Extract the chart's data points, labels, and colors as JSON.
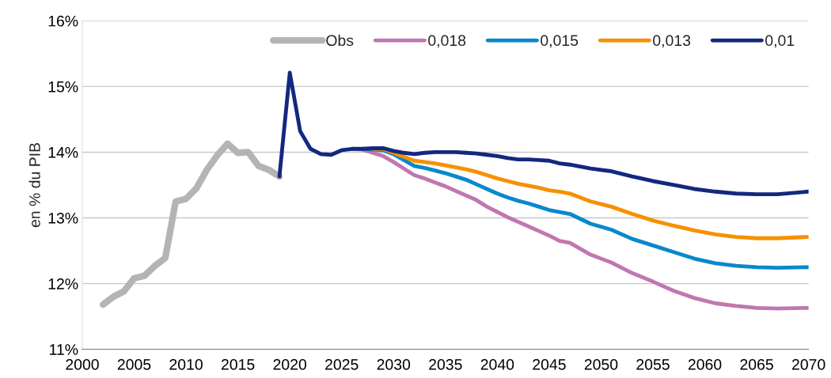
{
  "chart_data": {
    "type": "line",
    "ylabel": "en % du PIB",
    "xlim": [
      2000,
      2070
    ],
    "xticks": [
      2000,
      2005,
      2010,
      2015,
      2020,
      2025,
      2030,
      2035,
      2040,
      2045,
      2050,
      2055,
      2060,
      2065,
      2070
    ],
    "ylim": [
      11,
      16
    ],
    "yticks": [
      {
        "value": 11,
        "label": "11%"
      },
      {
        "value": 12,
        "label": "12%"
      },
      {
        "value": 13,
        "label": "13%"
      },
      {
        "value": 14,
        "label": "14%"
      },
      {
        "value": 15,
        "label": "15%"
      },
      {
        "value": 16,
        "label": "16%"
      }
    ],
    "grid": "y",
    "legend": "top",
    "marker": "none",
    "line_style": "solid",
    "series": [
      {
        "name": "Obs",
        "color": "#b4b4b4",
        "x": [
          2002,
          2003,
          2004,
          2005,
          2006,
          2007,
          2008,
          2009,
          2010,
          2011,
          2012,
          2013,
          2014,
          2015,
          2016,
          2017,
          2018,
          2019
        ],
        "values": [
          11.68,
          11.8,
          11.88,
          12.08,
          12.12,
          12.27,
          12.39,
          13.25,
          13.29,
          13.45,
          13.73,
          13.95,
          14.13,
          13.99,
          14.0,
          13.79,
          13.73,
          13.63
        ]
      },
      {
        "name": "0,018",
        "color": "#c077b0",
        "x": [
          2026,
          2027,
          2028,
          2029,
          2030,
          2031,
          2032,
          2033,
          2034,
          2035,
          2036,
          2037,
          2038,
          2039,
          2040,
          2041,
          2042,
          2043,
          2044,
          2045,
          2046,
          2047,
          2049,
          2051,
          2053,
          2055,
          2057,
          2059,
          2061,
          2063,
          2065,
          2067,
          2070
        ],
        "values": [
          14.05,
          14.04,
          13.99,
          13.94,
          13.85,
          13.75,
          13.65,
          13.6,
          13.54,
          13.48,
          13.41,
          13.34,
          13.27,
          13.17,
          13.09,
          13.01,
          12.94,
          12.87,
          12.8,
          12.73,
          12.65,
          12.62,
          12.44,
          12.32,
          12.16,
          12.03,
          11.89,
          11.78,
          11.7,
          11.66,
          11.63,
          11.62,
          11.63
        ]
      },
      {
        "name": "0,015",
        "color": "#0a88cc",
        "x": [
          2027,
          2028,
          2029,
          2030,
          2031,
          2032,
          2033,
          2034,
          2035,
          2036,
          2037,
          2038,
          2039,
          2040,
          2041,
          2042,
          2043,
          2044,
          2045,
          2046,
          2047,
          2049,
          2051,
          2053,
          2055,
          2057,
          2059,
          2061,
          2063,
          2065,
          2067,
          2070
        ],
        "values": [
          14.05,
          14.04,
          14.03,
          13.97,
          13.88,
          13.79,
          13.76,
          13.72,
          13.68,
          13.63,
          13.58,
          13.51,
          13.44,
          13.37,
          13.31,
          13.26,
          13.22,
          13.17,
          13.12,
          13.09,
          13.06,
          12.91,
          12.82,
          12.68,
          12.58,
          12.48,
          12.38,
          12.31,
          12.27,
          12.25,
          12.24,
          12.25
        ]
      },
      {
        "name": "0,013",
        "color": "#f59100",
        "x": [
          2028,
          2029,
          2030,
          2031,
          2032,
          2033,
          2034,
          2035,
          2036,
          2037,
          2038,
          2039,
          2040,
          2041,
          2042,
          2043,
          2044,
          2045,
          2046,
          2047,
          2049,
          2051,
          2053,
          2055,
          2057,
          2059,
          2061,
          2063,
          2065,
          2067,
          2070
        ],
        "values": [
          14.05,
          14.05,
          13.99,
          13.93,
          13.87,
          13.85,
          13.83,
          13.8,
          13.77,
          13.74,
          13.7,
          13.65,
          13.6,
          13.56,
          13.52,
          13.49,
          13.46,
          13.42,
          13.4,
          13.37,
          13.25,
          13.17,
          13.06,
          12.96,
          12.88,
          12.81,
          12.75,
          12.71,
          12.69,
          12.69,
          12.71
        ]
      },
      {
        "name": "0,01",
        "color": "#13287e",
        "x": [
          2019,
          2020,
          2021,
          2022,
          2023,
          2024,
          2025,
          2026,
          2027,
          2028,
          2029,
          2030,
          2031,
          2032,
          2033,
          2034,
          2035,
          2036,
          2037,
          2038,
          2039,
          2040,
          2041,
          2042,
          2043,
          2044,
          2045,
          2046,
          2047,
          2049,
          2051,
          2053,
          2055,
          2057,
          2059,
          2061,
          2063,
          2065,
          2067,
          2070
        ],
        "values": [
          13.63,
          15.21,
          14.32,
          14.05,
          13.97,
          13.96,
          14.03,
          14.05,
          14.05,
          14.06,
          14.06,
          14.02,
          13.99,
          13.97,
          13.99,
          14.0,
          14.0,
          14.0,
          13.99,
          13.98,
          13.96,
          13.94,
          13.91,
          13.89,
          13.89,
          13.88,
          13.87,
          13.83,
          13.81,
          13.75,
          13.71,
          13.63,
          13.56,
          13.5,
          13.44,
          13.4,
          13.37,
          13.36,
          13.36,
          13.4
        ]
      }
    ]
  }
}
